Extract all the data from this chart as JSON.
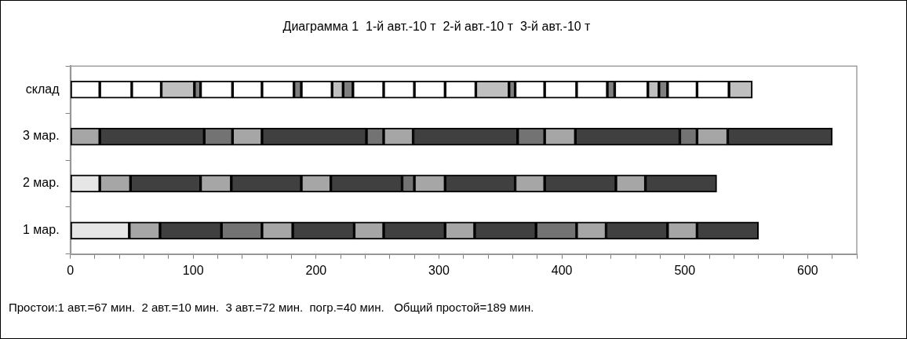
{
  "chart_data": {
    "type": "bar",
    "orientation": "horizontal",
    "stacked": true,
    "title": "Диаграмма 1  1-й авт.-10 т  2-й авт.-10 т  3-й авт.-10 т",
    "annotations": [
      "Простои:1 авт.=67 мин.  2 авт.=10 мин.  3 авт.=72 мин.  погр.=40 мин.   Общий простой=189 мин."
    ],
    "categories": [
      "склад",
      "3 мар.",
      "2 мар.",
      "1 мар."
    ],
    "xlim": [
      0,
      640
    ],
    "xticks": [
      0,
      {
        "value": 20,
        "label": null
      },
      {
        "value": 40,
        "label": null
      },
      {
        "value": 60,
        "label": null
      },
      {
        "value": 80,
        "label": null
      },
      100,
      {
        "value": 120,
        "label": null
      },
      {
        "value": 140,
        "label": null
      },
      {
        "value": 160,
        "label": null
      },
      {
        "value": 180,
        "label": null
      },
      200,
      {
        "value": 220,
        "label": null
      },
      {
        "value": 240,
        "label": null
      },
      {
        "value": 260,
        "label": null
      },
      {
        "value": 280,
        "label": null
      },
      300,
      {
        "value": 320,
        "label": null
      },
      {
        "value": 340,
        "label": null
      },
      {
        "value": 360,
        "label": null
      },
      {
        "value": 380,
        "label": null
      },
      400,
      {
        "value": 420,
        "label": null
      },
      {
        "value": 440,
        "label": null
      },
      {
        "value": 460,
        "label": null
      },
      {
        "value": 480,
        "label": null
      },
      500,
      {
        "value": 520,
        "label": null
      },
      {
        "value": 540,
        "label": null
      },
      {
        "value": 560,
        "label": null
      },
      {
        "value": 580,
        "label": null
      },
      600,
      {
        "value": 620,
        "label": null
      },
      {
        "value": 640,
        "label": null
      }
    ],
    "series": [
      {
        "values": [
          24,
          24,
          24,
          48
        ],
        "colors": [
          "#ffffff",
          "#a6a6a6",
          "#e6e6e6",
          "#e6e6e6"
        ]
      },
      {
        "values": [
          26,
          85,
          25,
          25
        ],
        "colors": [
          "#ffffff",
          "#404040",
          "#a6a6a6",
          "#a6a6a6"
        ]
      },
      {
        "values": [
          24,
          23,
          57,
          50
        ],
        "colors": [
          "#ffffff",
          "#737373",
          "#404040",
          "#404040"
        ]
      },
      {
        "values": [
          27,
          24,
          25,
          33
        ],
        "colors": [
          "#bfbfbf",
          "#a6a6a6",
          "#a6a6a6",
          "#737373"
        ]
      },
      {
        "values": [
          5,
          85,
          57,
          25
        ],
        "colors": [
          "#7f7f7f",
          "#404040",
          "#404040",
          "#a6a6a6"
        ]
      },
      {
        "values": [
          26,
          14,
          24,
          50
        ],
        "colors": [
          "#ffffff",
          "#737373",
          "#a6a6a6",
          "#404040"
        ]
      },
      {
        "values": [
          24,
          24,
          58,
          24
        ],
        "colors": [
          "#ffffff",
          "#a6a6a6",
          "#404040",
          "#a6a6a6"
        ]
      },
      {
        "values": [
          26,
          85,
          10,
          50
        ],
        "colors": [
          "#ffffff",
          "#404040",
          "#737373",
          "#404040"
        ]
      },
      {
        "values": [
          6,
          22,
          25,
          24
        ],
        "colors": [
          "#7f7f7f",
          "#737373",
          "#a6a6a6",
          "#a6a6a6"
        ]
      },
      {
        "values": [
          25,
          25,
          57,
          50
        ],
        "colors": [
          "#ffffff",
          "#a6a6a6",
          "#404040",
          "#404040"
        ]
      },
      {
        "values": [
          9,
          85,
          24,
          33
        ],
        "colors": [
          "#bfbfbf",
          "#404040",
          "#a6a6a6",
          "#737373"
        ]
      },
      {
        "values": [
          8,
          14,
          58,
          24
        ],
        "colors": [
          "#7f7f7f",
          "#737373",
          "#404040",
          "#a6a6a6"
        ]
      },
      {
        "values": [
          25,
          25,
          24,
          50
        ],
        "colors": [
          "#ffffff",
          "#a6a6a6",
          "#a6a6a6",
          "#404040"
        ]
      },
      {
        "values": [
          25,
          85,
          58,
          24
        ],
        "colors": [
          "#ffffff",
          "#404040",
          "#404040",
          "#a6a6a6"
        ]
      },
      {
        "values": [
          25,
          null,
          null,
          50
        ],
        "colors": [
          "#ffffff",
          null,
          null,
          "#404040"
        ]
      },
      {
        "values": [
          25,
          null,
          null,
          null
        ],
        "colors": [
          "#ffffff",
          null,
          null,
          null
        ]
      },
      {
        "values": [
          27,
          null,
          null,
          null
        ],
        "colors": [
          "#bfbfbf",
          null,
          null,
          null
        ]
      },
      {
        "values": [
          5,
          null,
          null,
          null
        ],
        "colors": [
          "#7f7f7f",
          null,
          null,
          null
        ]
      },
      {
        "values": [
          24,
          null,
          null,
          null
        ],
        "colors": [
          "#ffffff",
          null,
          null,
          null
        ]
      },
      {
        "values": [
          26,
          null,
          null,
          null
        ],
        "colors": [
          "#ffffff",
          null,
          null,
          null
        ]
      },
      {
        "values": [
          25,
          null,
          null,
          null
        ],
        "colors": [
          "#ffffff",
          null,
          null,
          null
        ]
      },
      {
        "values": [
          6,
          null,
          null,
          null
        ],
        "colors": [
          "#7f7f7f",
          null,
          null,
          null
        ]
      },
      {
        "values": [
          27,
          null,
          null,
          null
        ],
        "colors": [
          "#ffffff",
          null,
          null,
          null
        ]
      },
      {
        "values": [
          9,
          null,
          null,
          null
        ],
        "colors": [
          "#bfbfbf",
          null,
          null,
          null
        ]
      },
      {
        "values": [
          7,
          null,
          null,
          null
        ],
        "colors": [
          "#7f7f7f",
          null,
          null,
          null
        ]
      },
      {
        "values": [
          24,
          null,
          null,
          null
        ],
        "colors": [
          "#ffffff",
          null,
          null,
          null
        ]
      },
      {
        "values": [
          26,
          null,
          null,
          null
        ],
        "colors": [
          "#ffffff",
          null,
          null,
          null
        ]
      },
      {
        "values": [
          19,
          null,
          null,
          null
        ],
        "colors": [
          "#bfbfbf",
          null,
          null,
          null
        ]
      }
    ]
  }
}
